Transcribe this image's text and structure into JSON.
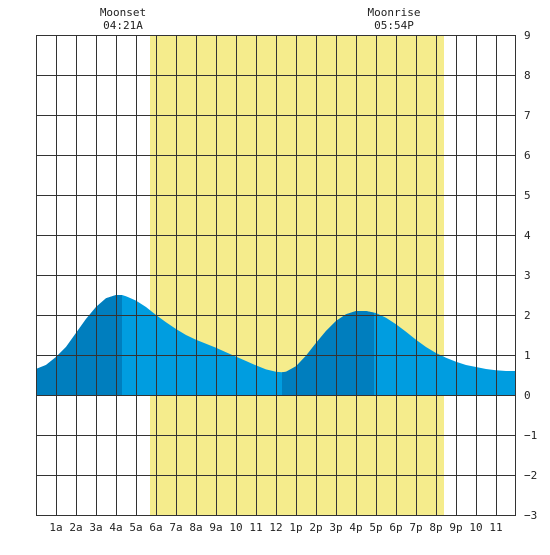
{
  "chart_data": {
    "type": "area",
    "title": "",
    "xlabel": "",
    "ylabel": "",
    "x_tick_labels": [
      "1a",
      "2a",
      "3a",
      "4a",
      "5a",
      "6a",
      "7a",
      "8a",
      "9a",
      "10",
      "11",
      "12",
      "1p",
      "2p",
      "3p",
      "4p",
      "5p",
      "6p",
      "7p",
      "8p",
      "9p",
      "10",
      "11"
    ],
    "y_tick_labels": [
      "9",
      "8",
      "7",
      "6",
      "5",
      "4",
      "3",
      "2",
      "1",
      "0",
      "−1",
      "−2",
      "−3"
    ],
    "xlim": [
      0,
      24
    ],
    "ylim": [
      -3,
      9
    ],
    "grid": true,
    "daylight_shading": {
      "start_hour": 5.7,
      "end_hour": 20.4,
      "color": "#f5ec8c"
    },
    "annotations": [
      {
        "title": "Moonset",
        "time": "04:21A",
        "hour": 4.35
      },
      {
        "title": "Moonrise",
        "time": "05:54P",
        "hour": 17.9
      }
    ],
    "series": [
      {
        "x": [
          0,
          0.5,
          1,
          1.5,
          2,
          2.5,
          3,
          3.5,
          4,
          4.3,
          4.5,
          5,
          5.5,
          6,
          6.5,
          7,
          7.5,
          8,
          8.5,
          9,
          9.5,
          10,
          10.5,
          11,
          11.5,
          12,
          12.3,
          12.5,
          13,
          13.5,
          14,
          14.5,
          15,
          15.5,
          16,
          16.5,
          17,
          17.5,
          18,
          18.5,
          19,
          19.5,
          20,
          20.5,
          21,
          21.5,
          22,
          22.5,
          23,
          23.5,
          24
        ],
        "values": [
          0.65,
          0.75,
          0.95,
          1.2,
          1.55,
          1.9,
          2.2,
          2.42,
          2.5,
          2.5,
          2.47,
          2.36,
          2.2,
          2.0,
          1.82,
          1.65,
          1.5,
          1.38,
          1.28,
          1.18,
          1.07,
          0.96,
          0.85,
          0.74,
          0.64,
          0.58,
          0.57,
          0.58,
          0.72,
          0.98,
          1.3,
          1.6,
          1.85,
          2.02,
          2.1,
          2.1,
          2.05,
          1.93,
          1.77,
          1.58,
          1.38,
          1.2,
          1.05,
          0.93,
          0.83,
          0.75,
          0.7,
          0.65,
          0.62,
          0.6,
          0.6
        ]
      }
    ],
    "rising_periods": [
      {
        "start_hour": 0,
        "end_hour": 4.3
      },
      {
        "start_hour": 12.3,
        "end_hour": 16.9
      }
    ],
    "colors": {
      "rising": "#007ebe",
      "falling": "#009de0",
      "daylight": "#f5ec8c",
      "grid": "#333333"
    }
  }
}
